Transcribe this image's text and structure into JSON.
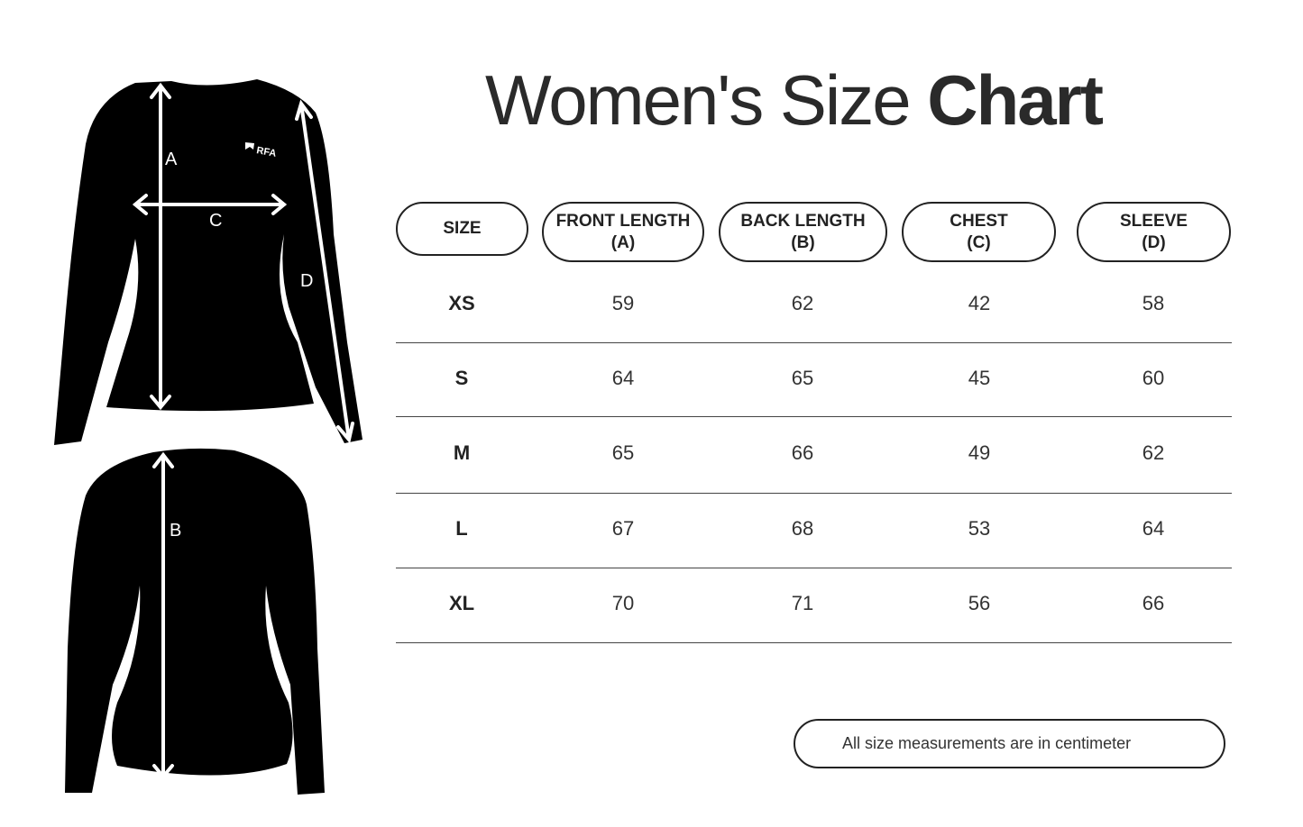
{
  "title": {
    "regular": "Women's Size ",
    "bold": "Chart"
  },
  "diagram": {
    "labels": {
      "a": "A",
      "b": "B",
      "c": "C",
      "d": "D"
    },
    "logo_text": "RFA"
  },
  "table": {
    "headers": [
      {
        "line1": "SIZE",
        "line2": ""
      },
      {
        "line1": "FRONT LENGTH",
        "line2": "(A)"
      },
      {
        "line1": "BACK LENGTH",
        "line2": "(B)"
      },
      {
        "line1": "CHEST",
        "line2": "(C)"
      },
      {
        "line1": "SLEEVE",
        "line2": "(D)"
      }
    ],
    "rows": [
      [
        "XS",
        "59",
        "62",
        "42",
        "58"
      ],
      [
        "S",
        "64",
        "65",
        "45",
        "60"
      ],
      [
        "M",
        "65",
        "66",
        "49",
        "62"
      ],
      [
        "L",
        "67",
        "68",
        "53",
        "64"
      ],
      [
        "XL",
        "70",
        "71",
        "56",
        "66"
      ]
    ]
  },
  "note": "All size measurements are in centimeter"
}
